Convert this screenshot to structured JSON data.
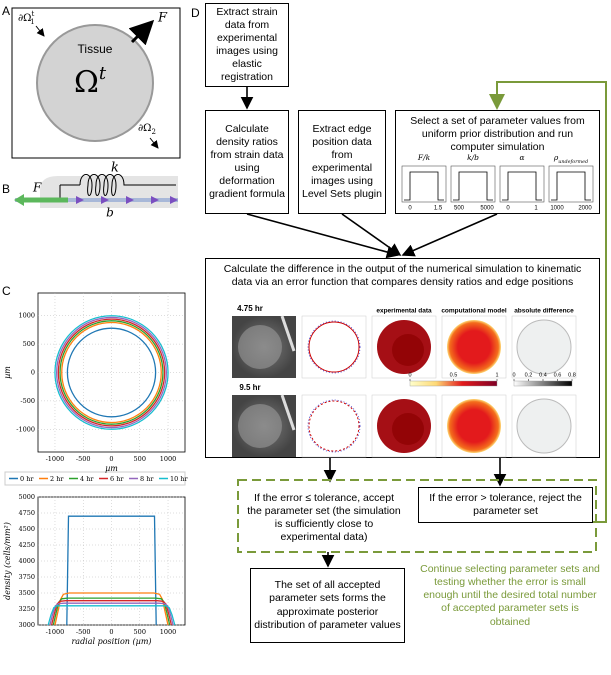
{
  "panel_labels": [
    "A",
    "B",
    "C",
    "D"
  ],
  "panel_a": {
    "boundary_1": {
      "base": "∂Ω",
      "sub": "1",
      "sup": "t"
    },
    "force": "F",
    "tissue": "Tissue",
    "domain": {
      "base": "Ω",
      "sup": "t"
    },
    "boundary_2": {
      "base": "∂Ω",
      "sub": "2"
    }
  },
  "panel_b": {
    "spring": "k",
    "force": "F",
    "drag": "b"
  },
  "chart_data": [
    {
      "type": "circle",
      "xlabel": "µm",
      "ylabel": "µm",
      "xlim": [
        -1300,
        1300
      ],
      "ylim": [
        -1400,
        1400
      ],
      "xticks": [
        -1000,
        -500,
        0,
        500,
        1000
      ],
      "yticks": [
        -1000,
        -500,
        0,
        500,
        1000
      ],
      "grid": true,
      "series": [
        {
          "name": "0 hr",
          "color": "#1f77b4",
          "radius": 780
        },
        {
          "name": "2 hr",
          "color": "#ff7f0e",
          "radius": 880
        },
        {
          "name": "4 hr",
          "color": "#2ca02c",
          "radius": 910
        },
        {
          "name": "6 hr",
          "color": "#d62728",
          "radius": 940
        },
        {
          "name": "8 hr",
          "color": "#9467bd",
          "radius": 970
        },
        {
          "name": "10 hr",
          "color": "#17becf",
          "radius": 1000
        }
      ]
    },
    {
      "type": "line",
      "xlabel": "radial position (µm)",
      "ylabel": "density (cells/mm²)",
      "xlim": [
        -1300,
        1300
      ],
      "ylim": [
        3000,
        5000
      ],
      "xticks": [
        -1000,
        -500,
        0,
        500,
        1000
      ],
      "yticks": [
        3000,
        3250,
        3500,
        3750,
        4000,
        4250,
        4500,
        4750,
        5000
      ],
      "grid": true,
      "series": [
        {
          "color": "#1f77b4",
          "x": [
            -790,
            -760,
            760,
            790
          ],
          "values": [
            3000,
            4700,
            4700,
            3000
          ]
        },
        {
          "color": "#ff7f0e",
          "x": [
            -1000,
            -950,
            -900,
            -850,
            -750,
            750,
            850,
            900,
            950,
            1000
          ],
          "values": [
            3000,
            3200,
            3400,
            3480,
            3500,
            3500,
            3480,
            3400,
            3200,
            3000
          ]
        },
        {
          "color": "#2ca02c",
          "x": [
            -1030,
            -980,
            -930,
            -880,
            -780,
            780,
            880,
            930,
            980,
            1030
          ],
          "values": [
            3000,
            3190,
            3360,
            3410,
            3420,
            3420,
            3410,
            3360,
            3190,
            3000
          ]
        },
        {
          "color": "#d62728",
          "x": [
            -1060,
            -1010,
            -960,
            -910,
            -810,
            810,
            910,
            960,
            1010,
            1060
          ],
          "values": [
            3000,
            3180,
            3330,
            3370,
            3380,
            3380,
            3370,
            3330,
            3180,
            3000
          ]
        },
        {
          "color": "#9467bd",
          "x": [
            -1090,
            -1040,
            -990,
            -940,
            -840,
            840,
            940,
            990,
            1040,
            1090
          ],
          "values": [
            3000,
            3170,
            3300,
            3335,
            3340,
            3340,
            3335,
            3300,
            3170,
            3000
          ]
        },
        {
          "color": "#17becf",
          "x": [
            -1120,
            -1070,
            -1020,
            -970,
            -870,
            870,
            970,
            1020,
            1070,
            1120
          ],
          "values": [
            3000,
            3160,
            3270,
            3300,
            3300,
            3300,
            3300,
            3270,
            3160,
            3000
          ]
        }
      ]
    }
  ],
  "flowchart": {
    "extract_strain": "Extract strain data from experimental images using elastic registration",
    "density_ratios": "Calculate density ratios from strain data using deformation gradient formula",
    "edge_position": "Extract edge position data from experimental images using Level Sets plugin",
    "select_parameters": {
      "text": "Select a set of parameter values from uniform prior distribution and run computer simulation",
      "priors": [
        {
          "label": {
            "base": "F/k"
          },
          "min": 0,
          "max": 1.5
        },
        {
          "label": {
            "base": "k/b"
          },
          "min": 500,
          "max": 5000
        },
        {
          "label": {
            "base": "α"
          },
          "min": 0,
          "max": 1
        },
        {
          "label": {
            "base": "ρ",
            "sub": "undeformed"
          },
          "min": 1000,
          "max": 2000
        }
      ]
    },
    "error": {
      "text": "Calculate the difference in the output of the numerical simulation to kinematic data via an error function that compares density ratios and edge positions",
      "times": [
        "4.75 hr",
        "9.5 hr"
      ],
      "columns": [
        "experimental data",
        "computational model",
        "absolute difference"
      ],
      "colorbar_1": [
        0,
        0.5,
        1
      ],
      "colorbar_2": [
        0,
        0.2,
        0.4,
        0.6,
        0.8
      ]
    },
    "accept": "If the error ≤ tolerance, accept the parameter set (the simulation is sufficiently close to experimental data)",
    "reject": "If the error > tolerance, reject the parameter set",
    "posterior": "The set of all accepted parameter sets forms the approximate posterior distribution of parameter values",
    "loop_note": "Continue selecting parameter sets and testing whether the error is small enough until the desired total number of accepted parameter sets is obtained"
  }
}
